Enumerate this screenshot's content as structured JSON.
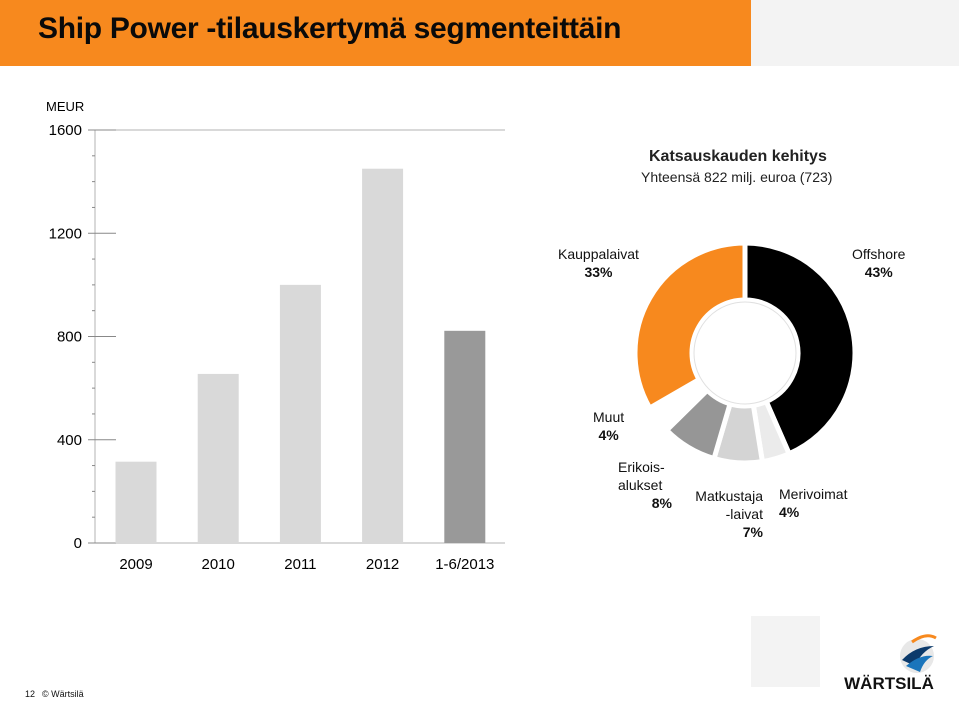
{
  "header": {
    "title": "Ship Power -tilauskertymä segmenteittäin"
  },
  "chart_data": [
    {
      "type": "bar",
      "unit_label": "MEUR",
      "categories": [
        "2009",
        "2010",
        "2011",
        "2012",
        "1-6/2013"
      ],
      "values": [
        315,
        655,
        1000,
        1450,
        822
      ],
      "ylim": [
        0,
        1600
      ],
      "yticks": [
        "0",
        "400",
        "800",
        "1200",
        "1600"
      ],
      "colors": [
        "#d9d9d9",
        "#d9d9d9",
        "#d9d9d9",
        "#d9d9d9",
        "#999999"
      ],
      "grid": false
    },
    {
      "type": "pie",
      "title": "Katsauskauden kehitys",
      "subtitle": "Yhteensä 822 milj. euroa (723)",
      "slices": [
        {
          "name": "Offshore",
          "value": 43,
          "label": "43%",
          "color": "#000000"
        },
        {
          "name": "Merivoimat",
          "value": 4,
          "label": "4%",
          "color": "#ebebeb"
        },
        {
          "name": "Matkustaja-laivat",
          "value": 7,
          "label": "7%",
          "color": "#d4d4d4"
        },
        {
          "name": "Erikoisalukset",
          "value": 8,
          "label": "8%",
          "color": "#969696"
        },
        {
          "name": "Muut",
          "value": 4,
          "label": "4%",
          "color": "#ffffff"
        },
        {
          "name": "Kauppalaivat",
          "value": 33,
          "label": "33%",
          "color": "#f7891e"
        }
      ],
      "labels": {
        "offshore_name": "Offshore",
        "offshore_pct": "43%",
        "kauppa_name": "Kauppalaivat",
        "kauppa_pct": "33%",
        "muut_name": "Muut",
        "muut_pct": "4%",
        "erikois_line1": "Erikois-",
        "erikois_line2": "alukset",
        "erikois_pct": "8%",
        "matkustaja_line1": "Matkustaja",
        "matkustaja_line2": "-laivat",
        "matkustaja_pct": "7%",
        "meri_name": "Merivoimat",
        "meri_pct": "4%"
      }
    }
  ],
  "footer": {
    "page_number": "12",
    "copyright": "© Wärtsilä"
  },
  "logo": {
    "text": "WÄRTSILÄ"
  }
}
